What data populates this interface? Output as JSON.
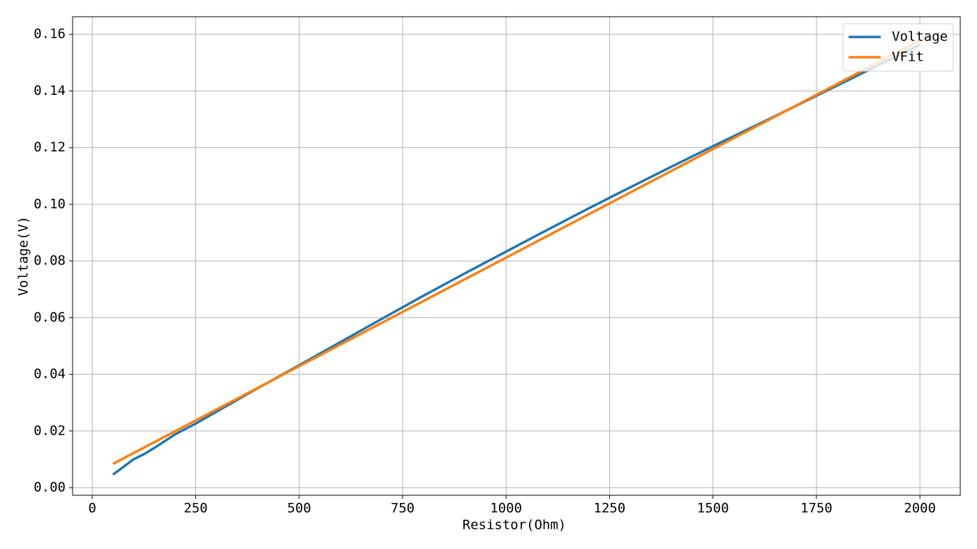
{
  "chart_data": {
    "type": "line",
    "xlabel": "Resistor(Ohm)",
    "ylabel": "Voltage(V)",
    "xlim": [
      -47.5,
      2097.5
    ],
    "ylim": [
      -0.0027,
      0.1662
    ],
    "xticks": [
      0,
      250,
      500,
      750,
      1000,
      1250,
      1500,
      1750,
      2000
    ],
    "yticks": [
      {
        "value": 0,
        "label": "0.00"
      },
      {
        "value": 0.02,
        "label": "0.02"
      },
      {
        "value": 0.04,
        "label": "0.04"
      },
      {
        "value": 0.06,
        "label": "0.06"
      },
      {
        "value": 0.08,
        "label": "0.08"
      },
      {
        "value": 0.1,
        "label": "0.10"
      },
      {
        "value": 0.12,
        "label": "0.12"
      },
      {
        "value": 0.14,
        "label": "0.14"
      },
      {
        "value": 0.16,
        "label": "0.16"
      }
    ],
    "grid": true,
    "legend": "upper right",
    "series": [
      {
        "name": "Voltage",
        "color": "#1f77b4",
        "x": [
          50,
          100,
          125,
          150,
          200,
          250,
          300,
          400,
          500,
          600,
          700,
          800,
          900,
          1000,
          1100,
          1200,
          1300,
          1400,
          1500,
          1600,
          1700,
          1800,
          1900,
          2000
        ],
        "values": [
          0.0046,
          0.01,
          0.0118,
          0.014,
          0.0188,
          0.0226,
          0.0268,
          0.0351,
          0.0432,
          0.0514,
          0.0596,
          0.0677,
          0.0756,
          0.0833,
          0.091,
          0.0986,
          0.106,
          0.1133,
          0.1205,
          0.1276,
          0.1347,
          0.1419,
          0.1491,
          0.1563
        ]
      },
      {
        "name": "VFit",
        "color": "#ff7f0e",
        "x": [
          50,
          2000
        ],
        "values": [
          0.0084,
          0.1578
        ]
      }
    ]
  }
}
